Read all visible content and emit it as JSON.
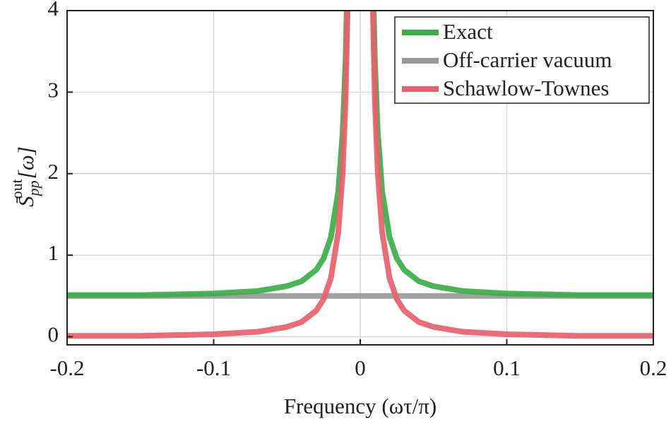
{
  "chart_data": {
    "type": "line",
    "xlabel": "Frequency (ωτ/π)",
    "ylabel": {
      "base": "S̄",
      "sub": "pp",
      "sup": "out",
      "arg": "[ω]"
    },
    "x": [
      -0.2,
      -0.15,
      -0.1,
      -0.07,
      -0.05,
      -0.04,
      -0.03,
      -0.025,
      -0.02,
      -0.015,
      -0.012,
      -0.01,
      -0.008,
      0,
      0.008,
      0.01,
      0.012,
      0.015,
      0.02,
      0.025,
      0.03,
      0.04,
      0.05,
      0.07,
      0.1,
      0.15,
      0.2
    ],
    "series": [
      {
        "name": "Exact",
        "color": "#3bae48",
        "values": [
          0.51,
          0.51,
          0.53,
          0.56,
          0.62,
          0.68,
          0.82,
          0.96,
          1.22,
          1.78,
          2.5,
          3.39,
          5.0,
          null,
          5.0,
          3.39,
          2.5,
          1.78,
          1.22,
          0.96,
          0.82,
          0.68,
          0.62,
          0.56,
          0.53,
          0.51,
          0.51
        ]
      },
      {
        "name": "Off-carrier vacuum",
        "color": "#999999",
        "values": [
          0.5,
          0.5,
          0.5,
          0.5,
          0.5,
          0.5,
          0.5,
          0.5,
          0.5,
          0.5,
          0.5,
          0.5,
          0.5,
          0.5,
          0.5,
          0.5,
          0.5,
          0.5,
          0.5,
          0.5,
          0.5,
          0.5,
          0.5,
          0.5,
          0.5,
          0.5,
          0.5
        ]
      },
      {
        "name": "Schawlow-Townes",
        "color": "#e8606a",
        "values": [
          0.01,
          0.01,
          0.03,
          0.06,
          0.12,
          0.18,
          0.32,
          0.46,
          0.72,
          1.28,
          2.0,
          2.89,
          4.5,
          null,
          4.5,
          2.89,
          2.0,
          1.28,
          0.72,
          0.46,
          0.32,
          0.18,
          0.12,
          0.06,
          0.03,
          0.01,
          0.01
        ]
      }
    ],
    "xlim": [
      -0.2,
      0.2
    ],
    "xticks": [
      -0.2,
      -0.1,
      0,
      0.1,
      0.2
    ],
    "ylim": [
      -0.1,
      4
    ],
    "yticks": [
      0,
      1,
      2,
      3,
      4
    ],
    "grid": true,
    "legend": "top-right"
  }
}
